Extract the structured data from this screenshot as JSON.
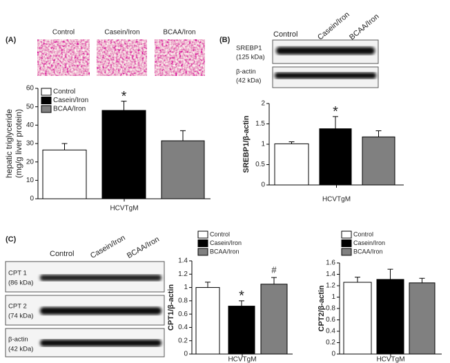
{
  "panels": [
    "(A)",
    "(B)",
    "(C)"
  ],
  "histology": {
    "labels": [
      "Control",
      "Casein/Iron",
      "BCAA/Iron"
    ]
  },
  "blots": [
    {
      "lanes": [
        "Control",
        "Casein/Iron",
        "BCAA/Iron"
      ],
      "rows": [
        {
          "name": "SREBP1",
          "size": "(125 kDa)"
        },
        {
          "name": "β-actin",
          "size": "(42 kDa)"
        }
      ]
    },
    {
      "lanes": [
        "Control",
        "Casein/Iron",
        "BCAA/Iron"
      ],
      "rows": [
        {
          "name": "CPT 1",
          "size": "(86 kDa)"
        },
        {
          "name": "CPT 2",
          "size": "(74 kDa)"
        },
        {
          "name": "β-actin",
          "size": "(42 kDa)"
        }
      ]
    }
  ],
  "chart_data": [
    {
      "type": "bar",
      "ylabel": [
        "hepatic triglyceride",
        "(mg/g liver protein)"
      ],
      "xlabel": "HCVTgM",
      "categories": [
        "HCVTgM"
      ],
      "ylim": [
        0,
        60
      ],
      "yticks": [
        0,
        10,
        20,
        30,
        40,
        50,
        60
      ],
      "legend": "upper left",
      "series": [
        {
          "name": "Control",
          "color": "#ffffff",
          "values": [
            26.5
          ],
          "errors": [
            3.5
          ]
        },
        {
          "name": "Casein/Iron",
          "color": "#000000",
          "values": [
            48
          ],
          "errors": [
            5
          ],
          "annotation": "*"
        },
        {
          "name": "BCAA/Iron",
          "color": "#808080",
          "values": [
            31.5
          ],
          "errors": [
            5.5
          ]
        }
      ]
    },
    {
      "type": "bar",
      "ylabel": [
        "SREBP1/β-actin"
      ],
      "xlabel": "HCVTgM",
      "categories": [
        "HCVTgM"
      ],
      "ylim": [
        0,
        2
      ],
      "yticks": [
        0,
        0.5,
        1,
        1.5,
        2
      ],
      "series": [
        {
          "color": "#ffffff",
          "values": [
            1.01
          ],
          "errors": [
            0.05
          ]
        },
        {
          "color": "#000000",
          "values": [
            1.38
          ],
          "errors": [
            0.3
          ],
          "annotation": "*"
        },
        {
          "color": "#808080",
          "values": [
            1.18
          ],
          "errors": [
            0.15
          ]
        }
      ]
    },
    {
      "type": "bar",
      "ylabel": [
        "CPT1/β-actin"
      ],
      "xlabel": "HCVTgM",
      "categories": [
        "HCVTgM"
      ],
      "ylim": [
        0,
        1.4
      ],
      "yticks": [
        0,
        0.2,
        0.4,
        0.6,
        0.8,
        1,
        1.2,
        1.4
      ],
      "legend": "above",
      "series": [
        {
          "name": "Control",
          "color": "#ffffff",
          "values": [
            1.0
          ],
          "errors": [
            0.08
          ]
        },
        {
          "name": "Casein/Iron",
          "color": "#000000",
          "values": [
            0.72
          ],
          "errors": [
            0.08
          ],
          "annotation": "*"
        },
        {
          "name": "BCAA/Iron",
          "color": "#808080",
          "values": [
            1.05
          ],
          "errors": [
            0.1
          ],
          "annotation": "#"
        }
      ]
    },
    {
      "type": "bar",
      "ylabel": [
        "CPT2/β-actin"
      ],
      "xlabel": "HCVTgM",
      "categories": [
        "HCVTgM"
      ],
      "ylim": [
        0,
        1.6
      ],
      "yticks": [
        0,
        0.2,
        0.4,
        0.6,
        0.8,
        1,
        1.2,
        1.4,
        1.6
      ],
      "legend": "above",
      "series": [
        {
          "name": "Control",
          "color": "#ffffff",
          "values": [
            1.26
          ],
          "errors": [
            0.09
          ]
        },
        {
          "name": "Casein/Iron",
          "color": "#000000",
          "values": [
            1.31
          ],
          "errors": [
            0.18
          ]
        },
        {
          "name": "BCAA/Iron",
          "color": "#808080",
          "values": [
            1.25
          ],
          "errors": [
            0.08
          ]
        }
      ]
    }
  ]
}
